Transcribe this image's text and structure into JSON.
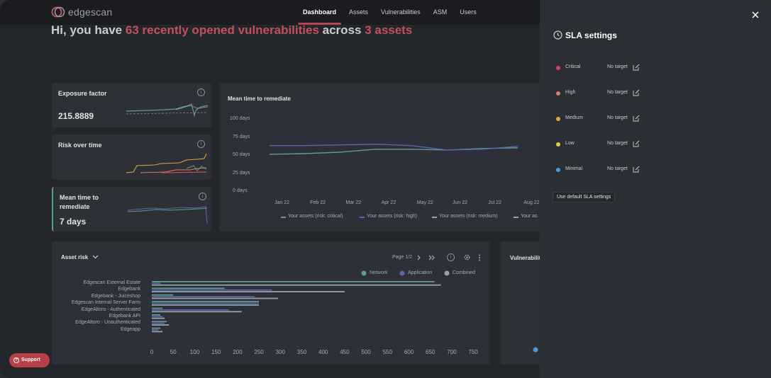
{
  "app": {
    "logo_text": "edgescan"
  },
  "nav": {
    "items": [
      "Dashboard",
      "Assets",
      "Vulnerabilities",
      "ASM",
      "Users"
    ],
    "active": "Dashboard"
  },
  "greeting": {
    "prefix": "Hi, you have ",
    "highlight1": "63 recently opened vulnerabilities",
    "middle": " across ",
    "highlight2": "3 assets"
  },
  "cards": {
    "exposure": {
      "title": "Exposure factor",
      "value": "215.8889"
    },
    "risk": {
      "title": "Risk over time"
    },
    "mttr_small": {
      "title_line1": "Mean time to",
      "title_line2": "remediate",
      "value": "7 days"
    }
  },
  "mttr_chart": {
    "title": "Mean time to remediate",
    "y_ticks": [
      "100 days",
      "75 days",
      "50 days",
      "25 days",
      "0 days"
    ],
    "x_ticks": [
      "Jan 22",
      "Feb 22",
      "Mar 22",
      "Apr 22",
      "May 22",
      "Jun 22",
      "Jul 22",
      "Aug 22"
    ],
    "legend": [
      "Your assets (risk: critical)",
      "Your assets (risk: high)",
      "Your assets (risk: medium)",
      "Your as"
    ]
  },
  "chart_data": [
    {
      "type": "line",
      "title": "Mean time to remediate",
      "x": [
        "Jan 22",
        "Feb 22",
        "Mar 22",
        "Apr 22",
        "May 22",
        "Jun 22",
        "Jul 22",
        "Aug 22"
      ],
      "ylim": [
        0,
        100
      ],
      "series": [
        {
          "name": "Your assets (risk: critical)",
          "values": [
            51,
            52,
            54,
            58,
            58,
            57,
            59,
            60
          ]
        },
        {
          "name": "Your assets (risk: high)",
          "values": [
            63,
            63,
            64,
            65,
            63,
            57,
            58,
            62
          ]
        }
      ]
    },
    {
      "type": "bar",
      "title": "Asset risk",
      "categories": [
        "Edgescan External Estate",
        "Edgebank",
        "Edgebank - Juiceshop",
        "Edgescan Internal Server Farm",
        "EdgeAltoro - Authenticated",
        "Edgebank API",
        "EdgeAltoro - Unauthenticated",
        "Edgeapp"
      ],
      "xlim": [
        0,
        750
      ],
      "series": [
        {
          "name": "Network",
          "values": [
            660,
            170,
            50,
            250,
            25,
            20,
            35,
            20
          ]
        },
        {
          "name": "Application",
          "values": [
            20,
            280,
            240,
            250,
            180,
            25,
            30,
            15
          ]
        },
        {
          "name": "Combined",
          "values": [
            675,
            450,
            295,
            250,
            210,
            30,
            40,
            25
          ]
        }
      ]
    }
  ],
  "asset_risk": {
    "title": "Asset risk",
    "pagination": "Page 1/2",
    "legend": [
      "Network",
      "Application",
      "Combined"
    ],
    "x_ticks": [
      "0",
      "50",
      "100",
      "150",
      "200",
      "250",
      "300",
      "350",
      "400",
      "450",
      "500",
      "550",
      "600",
      "650",
      "700",
      "750"
    ]
  },
  "vuln_card": {
    "title": "Vulnerabiliti"
  },
  "colors": {
    "accent": "#c2505a",
    "network": "#5e9e92",
    "application": "#5865a8",
    "combined": "#9aa0a8",
    "critical": "#d24a5c",
    "high": "#e07b6a",
    "medium": "#e7a444",
    "low": "#e8cc4c",
    "minimal": "#4f9ad6"
  },
  "sla": {
    "title": "SLA settings",
    "rows": [
      {
        "label": "Critical",
        "target": "No target"
      },
      {
        "label": "High",
        "target": "No target"
      },
      {
        "label": "Medium",
        "target": "No target"
      },
      {
        "label": "Low",
        "target": "No target"
      },
      {
        "label": "Minimal",
        "target": "No target"
      }
    ],
    "default_button": "Use default SLA settings"
  },
  "support": {
    "label": "Support"
  }
}
